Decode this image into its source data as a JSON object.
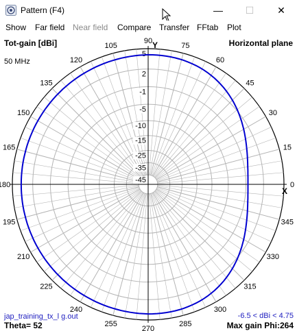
{
  "window": {
    "title": "Pattern   (F4)",
    "minimize": "—",
    "maximize": "☐",
    "close": "✕"
  },
  "menu": {
    "items": [
      {
        "label": "Show",
        "enabled": true
      },
      {
        "label": "Far field",
        "enabled": true
      },
      {
        "label": "Near field",
        "enabled": false
      },
      {
        "label": "Compare",
        "enabled": true
      },
      {
        "label": "Transfer",
        "enabled": true
      },
      {
        "label": "FFtab",
        "enabled": true
      },
      {
        "label": "Plot",
        "enabled": true
      }
    ]
  },
  "plot": {
    "top_left_label": "Tot-gain [dBi]",
    "top_right_label": "Horizontal plane",
    "frequency": "50 MHz",
    "y_marker": "Y",
    "x_marker": "X",
    "file_name": "jap_training_tx_l g.out",
    "theta_label": "Theta= 52",
    "gain_range": "-6.5 < dBi < 4.75",
    "max_gain": "Max gain Phi:264",
    "angle_labels": [
      "0",
      "15",
      "30",
      "45",
      "60",
      "75",
      "90",
      "105",
      "120",
      "135",
      "150",
      "165",
      "180",
      "195",
      "210",
      "225",
      "240",
      "255",
      "270",
      "285",
      "300",
      "315",
      "330",
      "345"
    ],
    "ring_labels": [
      "5",
      "2",
      "-1",
      "-5",
      "-10",
      "-15",
      "-25",
      "-35",
      "-45"
    ],
    "colors": {
      "pattern": "#0000d0",
      "grid": "#b4b4b4",
      "axis": "#000000"
    }
  }
}
